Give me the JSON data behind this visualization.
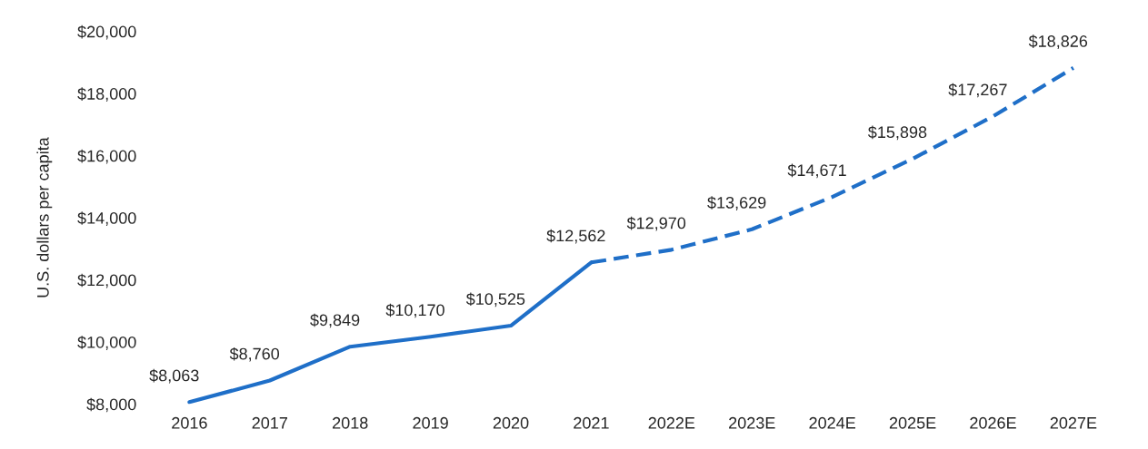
{
  "chart_data": {
    "type": "line",
    "ylabel": "U.S. dollars per capita",
    "categories": [
      "2016",
      "2017",
      "2018",
      "2019",
      "2020",
      "2021",
      "2022E",
      "2023E",
      "2024E",
      "2025E",
      "2026E",
      "2027E"
    ],
    "series": [
      {
        "color": "#1f6fc8",
        "line_style": "solid",
        "values": [
          8063,
          8760,
          9849,
          10170,
          10525,
          12562,
          null,
          null,
          null,
          null,
          null,
          null
        ],
        "value_labels": [
          "$8,063",
          "$8,760",
          "$9,849",
          "$10,170",
          "$10,525",
          "$12,562",
          null,
          null,
          null,
          null,
          null,
          null
        ]
      },
      {
        "color": "#1f6fc8",
        "line_style": "dashed",
        "values": [
          null,
          null,
          null,
          null,
          null,
          12562,
          12970,
          13629,
          14671,
          15898,
          17267,
          18826
        ],
        "value_labels": [
          null,
          null,
          null,
          null,
          null,
          null,
          "$12,970",
          "$13,629",
          "$14,671",
          "$15,898",
          "$17,267",
          "$18,826"
        ]
      }
    ],
    "ylim": [
      8000,
      20000
    ],
    "yticks": [
      {
        "value": 8000,
        "label": "$8,000"
      },
      {
        "value": 10000,
        "label": "$10,000"
      },
      {
        "value": 12000,
        "label": "$12,000"
      },
      {
        "value": 14000,
        "label": "$14,000"
      },
      {
        "value": 16000,
        "label": "$16,000"
      },
      {
        "value": 18000,
        "label": "$18,000"
      },
      {
        "value": 20000,
        "label": "$20,000"
      }
    ],
    "grid": false,
    "marker": "none"
  }
}
